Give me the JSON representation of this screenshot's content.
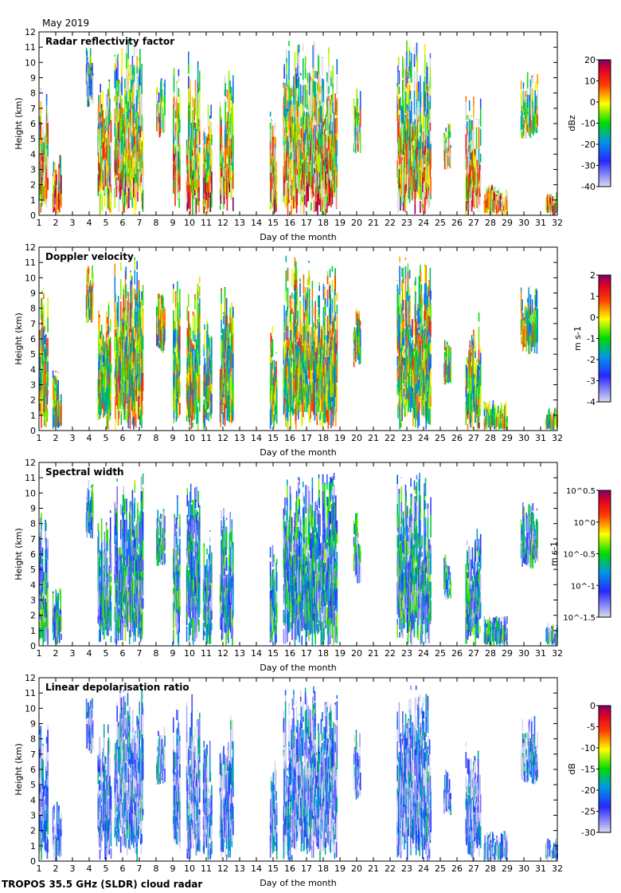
{
  "chart_data": {
    "type": "heatmap",
    "month_label": "May 2019",
    "footer": "TROPOS 35.5 GHz (SLDR) cloud radar",
    "xlabel": "Day of the month",
    "ylabel": "Height (km)",
    "xlim": [
      1,
      32
    ],
    "ylim": [
      0,
      12
    ],
    "xticks": [
      "1",
      "2",
      "3",
      "4",
      "5",
      "6",
      "7",
      "8",
      "9",
      "10",
      "11",
      "12",
      "13",
      "14",
      "15",
      "16",
      "17",
      "18",
      "19",
      "20",
      "21",
      "22",
      "23",
      "24",
      "25",
      "26",
      "27",
      "28",
      "29",
      "30",
      "31",
      "32"
    ],
    "yticks": [
      "0",
      "1",
      "2",
      "3",
      "4",
      "5",
      "6",
      "7",
      "8",
      "9",
      "10",
      "11",
      "12"
    ],
    "cloud_events": [
      {
        "start": 1.0,
        "end": 1.5,
        "base": 0,
        "top": 9.5
      },
      {
        "start": 1.8,
        "end": 2.3,
        "base": 0,
        "top": 4
      },
      {
        "start": 3.8,
        "end": 4.2,
        "base": 7,
        "top": 11
      },
      {
        "start": 4.5,
        "end": 5.3,
        "base": 0,
        "top": 9
      },
      {
        "start": 5.5,
        "end": 7.2,
        "base": 0,
        "top": 11.5
      },
      {
        "start": 8.0,
        "end": 8.5,
        "base": 5,
        "top": 9
      },
      {
        "start": 9.0,
        "end": 9.4,
        "base": 0,
        "top": 10
      },
      {
        "start": 9.8,
        "end": 10.6,
        "base": 0,
        "top": 11
      },
      {
        "start": 10.8,
        "end": 11.3,
        "base": 0,
        "top": 8
      },
      {
        "start": 11.8,
        "end": 12.6,
        "base": 0,
        "top": 9.5
      },
      {
        "start": 14.8,
        "end": 15.2,
        "base": 0,
        "top": 7
      },
      {
        "start": 15.6,
        "end": 18.8,
        "base": 0,
        "top": 11.5
      },
      {
        "start": 19.8,
        "end": 20.2,
        "base": 4,
        "top": 9
      },
      {
        "start": 22.4,
        "end": 24.4,
        "base": 0,
        "top": 11.5
      },
      {
        "start": 25.2,
        "end": 25.6,
        "base": 3,
        "top": 6
      },
      {
        "start": 26.5,
        "end": 27.4,
        "base": 0,
        "top": 8
      },
      {
        "start": 27.6,
        "end": 29.0,
        "base": 0,
        "top": 2
      },
      {
        "start": 29.8,
        "end": 30.8,
        "base": 5,
        "top": 9.5
      },
      {
        "start": 31.3,
        "end": 32.0,
        "base": 0,
        "top": 1.5
      }
    ],
    "panels": [
      {
        "title": "Radar reflectivity factor",
        "unit": "dBz",
        "colorbar_ticks": [
          "20",
          "10",
          "0",
          "-10",
          "-20",
          "-30",
          "-40"
        ],
        "range": [
          -40,
          20
        ],
        "bias": 0.35
      },
      {
        "title": "Doppler velocity",
        "unit": "m s-1",
        "colorbar_ticks": [
          "2",
          "1",
          "0",
          "-1",
          "-2",
          "-3",
          "-4"
        ],
        "range": [
          -4,
          2
        ],
        "bias": 0.55
      },
      {
        "title": "Spectral width",
        "unit": "m s-1",
        "colorbar_ticks": [
          "10^0.5",
          "10^0",
          "10^-0.5",
          "10^-1",
          "10^-1.5"
        ],
        "range": [
          -1.5,
          0.5
        ],
        "bias": 0.3
      },
      {
        "title": "Linear depolarisation ratio",
        "unit": "dB",
        "colorbar_ticks": [
          "0",
          "-5",
          "-10",
          "-15",
          "-20",
          "-25",
          "-30"
        ],
        "range": [
          -30,
          0
        ],
        "bias": 0.15
      }
    ]
  }
}
